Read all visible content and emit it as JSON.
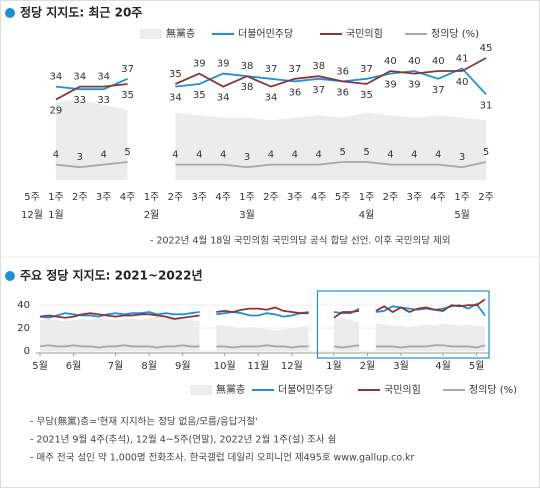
{
  "chart_data": [
    {
      "type": "line",
      "title": "정당 지지도: 최근 20주",
      "note": "- 2022년 4월 18일 국민의힘 국민의당 공식 합당 선언. 이후 국민의당 제외",
      "categories": [
        "5주",
        "1주",
        "2주",
        "3주",
        "4주",
        "1주",
        "2주",
        "3주",
        "4주",
        "1주",
        "2주",
        "3주",
        "4주",
        "5주",
        "1주",
        "2주",
        "3주",
        "4주",
        "1주",
        "2주"
      ],
      "x_group_labels": [
        "12월",
        "1월",
        null,
        null,
        null,
        "2월",
        null,
        null,
        null,
        "3월",
        null,
        null,
        null,
        null,
        "4월",
        null,
        null,
        null,
        "5월",
        null
      ],
      "ylim": [
        0,
        50
      ],
      "data_labels": true,
      "series": [
        {
          "name": "無黨층",
          "kind": "area",
          "color": "#ececec",
          "values": [
            null,
            28,
            29,
            27,
            25,
            null,
            24,
            23,
            22,
            22,
            21,
            22,
            23,
            22,
            24,
            23,
            22,
            23,
            22,
            21
          ]
        },
        {
          "name": "더불어민주당",
          "kind": "line",
          "color": "#1e90d8",
          "values": [
            null,
            34,
            33,
            33,
            37,
            null,
            34,
            35,
            39,
            38,
            37,
            36,
            37,
            36,
            37,
            39,
            40,
            37,
            41,
            31
          ]
        },
        {
          "name": "국민의힘",
          "kind": "line",
          "color": "#8a3636",
          "values": [
            null,
            29,
            34,
            34,
            35,
            null,
            35,
            39,
            34,
            38,
            34,
            37,
            38,
            36,
            35,
            40,
            39,
            40,
            40,
            45
          ]
        },
        {
          "name": "정의당 (%)",
          "kind": "line",
          "color": "#a8a8a8",
          "values": [
            null,
            4,
            3,
            4,
            5,
            null,
            4,
            4,
            4,
            3,
            4,
            4,
            4,
            5,
            5,
            4,
            4,
            4,
            3,
            5
          ]
        }
      ]
    },
    {
      "type": "line",
      "title": "주요 정당 지지도: 2021~2022년",
      "categories": [
        "5월",
        null,
        null,
        null,
        "6월",
        null,
        null,
        null,
        null,
        "7월",
        null,
        null,
        null,
        "8월",
        null,
        null,
        null,
        "9월",
        null,
        null,
        null,
        null,
        "10월",
        null,
        null,
        null,
        "11월",
        null,
        null,
        null,
        "12월",
        null,
        null,
        null,
        null,
        "1월",
        null,
        null,
        null,
        "2월",
        null,
        null,
        null,
        "3월",
        null,
        null,
        null,
        null,
        "4월",
        null,
        null,
        null,
        "5월",
        null
      ],
      "ylim": [
        0,
        48
      ],
      "yticks": [
        0,
        20,
        40
      ],
      "grid": true,
      "highlight_from": 34,
      "series": [
        {
          "name": "無黨층",
          "kind": "area",
          "color": "#ececec",
          "values": [
            27,
            28,
            27,
            26,
            27,
            28,
            27,
            29,
            28,
            27,
            28,
            28,
            27,
            29,
            30,
            29,
            28,
            28,
            27,
            26,
            null,
            23,
            22,
            21,
            20,
            21,
            20,
            19,
            18,
            19,
            20,
            21,
            22,
            null,
            null,
            28,
            29,
            27,
            25,
            null,
            24,
            23,
            22,
            22,
            21,
            22,
            23,
            22,
            24,
            23,
            22,
            23,
            22,
            21
          ]
        },
        {
          "name": "더불어민주당",
          "kind": "line",
          "color": "#1e90d8",
          "values": [
            30,
            29,
            31,
            33,
            32,
            31,
            31,
            30,
            32,
            33,
            32,
            33,
            33,
            34,
            32,
            33,
            32,
            32,
            33,
            34,
            null,
            32,
            33,
            34,
            33,
            31,
            31,
            33,
            32,
            30,
            31,
            33,
            34,
            null,
            null,
            34,
            33,
            33,
            37,
            null,
            34,
            35,
            39,
            38,
            37,
            36,
            37,
            36,
            37,
            39,
            40,
            37,
            41,
            31
          ]
        },
        {
          "name": "국민의힘",
          "kind": "line",
          "color": "#8a3636",
          "values": [
            30,
            31,
            30,
            29,
            30,
            32,
            33,
            32,
            31,
            30,
            31,
            31,
            32,
            32,
            31,
            30,
            28,
            29,
            30,
            31,
            null,
            34,
            35,
            34,
            36,
            37,
            37,
            36,
            38,
            35,
            34,
            33,
            33,
            null,
            null,
            29,
            34,
            34,
            35,
            null,
            35,
            39,
            34,
            38,
            34,
            37,
            38,
            36,
            35,
            40,
            39,
            40,
            40,
            45
          ]
        },
        {
          "name": "정의당 (%)",
          "kind": "line",
          "color": "#a8a8a8",
          "values": [
            4,
            5,
            4,
            4,
            5,
            4,
            4,
            3,
            4,
            4,
            5,
            4,
            4,
            4,
            3,
            4,
            4,
            5,
            4,
            4,
            null,
            4,
            4,
            3,
            4,
            4,
            4,
            5,
            4,
            4,
            3,
            4,
            4,
            null,
            null,
            4,
            3,
            4,
            5,
            null,
            4,
            4,
            4,
            3,
            4,
            4,
            4,
            5,
            5,
            4,
            4,
            4,
            3,
            5
          ]
        }
      ],
      "notes": [
        "- 무당(無黨)층='현재 지지하는 정당 없음/모름/응답거절'",
        "- 2021년 9월 4주(추석), 12월 4~5주(연말), 2022년 2월 1주(설) 조사 쉼",
        "- 매주 전국 성인 약 1,000명 전화조사. 한국갤럽 데일리 오피니언 제495호 www.gallup.co.kr"
      ]
    }
  ]
}
